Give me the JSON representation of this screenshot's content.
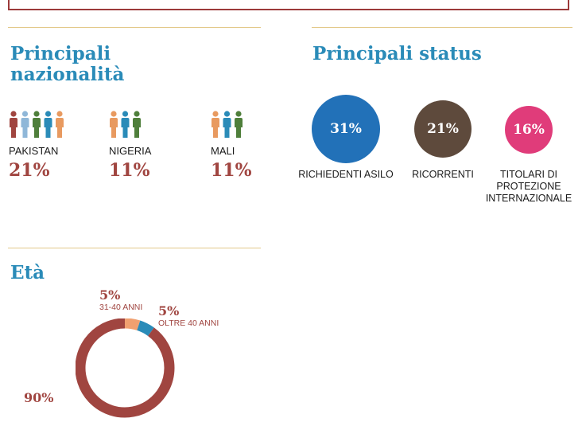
{
  "nationalities": {
    "heading": "Principali nazionalità",
    "items": [
      {
        "country": "PAKISTAN",
        "pct": "21%",
        "colors": [
          "#a04540",
          "#8fb7d8",
          "#4f7f3b",
          "#2a8bb8",
          "#e89a60"
        ]
      },
      {
        "country": "NIGERIA",
        "pct": "11%",
        "colors": [
          "#e89a60",
          "#2a8bb8",
          "#4f7f3b"
        ]
      },
      {
        "country": "MALI",
        "pct": "11%",
        "colors": [
          "#e89a60",
          "#2a8bb8",
          "#4f7f3b"
        ]
      }
    ]
  },
  "status": {
    "heading": "Principali status",
    "items": [
      {
        "pct": "31%",
        "label": "RICHIEDENTI ASILO",
        "color": "#2271b8"
      },
      {
        "pct": "21%",
        "label": "RICORRENTI",
        "color": "#5e4a3c"
      },
      {
        "pct": "16%",
        "label": "TITOLARI DI PROTEZIONE INTERNAZIONALE",
        "color": "#e03c7a"
      }
    ]
  },
  "age": {
    "heading": "Età",
    "labels": [
      {
        "pct": "5%",
        "label": "31-40 ANNI"
      },
      {
        "pct": "5%",
        "label": "OLTRE 40 ANNI"
      },
      {
        "pct": "90%",
        "label": ""
      }
    ]
  },
  "chart_data": {
    "type": "pie",
    "title": "Età",
    "slices": [
      {
        "label": "31-40 ANNI",
        "value": 5,
        "color": "#f0a070"
      },
      {
        "label": "OLTRE 40 ANNI",
        "value": 5,
        "color": "#2a8bb8"
      },
      {
        "label": "",
        "value": 90,
        "color": "#a04540"
      }
    ]
  }
}
